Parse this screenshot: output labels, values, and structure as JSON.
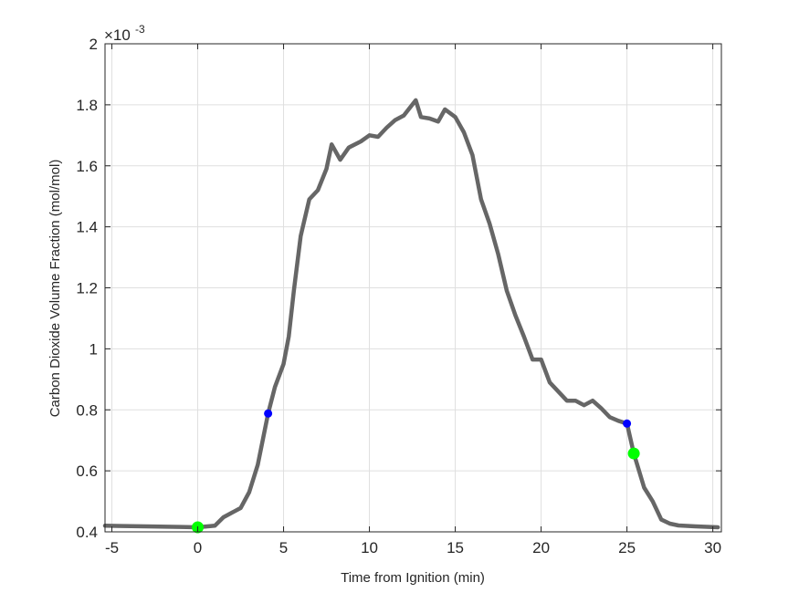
{
  "chart_data": {
    "type": "line",
    "title": "",
    "xlabel": "Time from Ignition (min)",
    "ylabel": "Carbon Dioxide Volume Fraction (mol/mol)",
    "y_exponent_label": "×10",
    "y_exponent": "-3",
    "xlim": [
      -5.4,
      30.5
    ],
    "ylim": [
      0.4,
      2.0
    ],
    "xticks": [
      -5,
      0,
      5,
      10,
      15,
      20,
      25,
      30
    ],
    "yticks": [
      0.4,
      0.6,
      0.8,
      1,
      1.2,
      1.4,
      1.6,
      1.8,
      2
    ],
    "grid": true,
    "line_color": "#666666",
    "series": [
      {
        "x": [
          -5.4,
          -3,
          -1,
          0,
          1,
          1.5,
          2.5,
          3,
          3.5,
          4.1,
          4.5,
          5,
          5.3,
          5.6,
          6,
          6.5,
          7,
          7.5,
          7.8,
          8.3,
          8.8,
          9.5,
          10,
          10.5,
          11,
          11.5,
          12,
          12.7,
          13,
          13.5,
          14,
          14.4,
          15,
          15.5,
          16,
          16.5,
          17,
          17.5,
          18,
          18.5,
          19,
          19.5,
          20,
          20.5,
          21,
          21.5,
          22,
          22.5,
          23,
          23.5,
          24,
          24.5,
          25,
          25.4,
          26,
          26.5,
          27,
          27.5,
          28,
          29,
          30.3
        ],
        "y": [
          0.42,
          0.418,
          0.416,
          0.415,
          0.42,
          0.448,
          0.478,
          0.53,
          0.62,
          0.788,
          0.875,
          0.95,
          1.04,
          1.19,
          1.37,
          1.49,
          1.52,
          1.59,
          1.67,
          1.62,
          1.66,
          1.68,
          1.7,
          1.695,
          1.725,
          1.75,
          1.765,
          1.815,
          1.76,
          1.755,
          1.745,
          1.785,
          1.76,
          1.71,
          1.635,
          1.49,
          1.41,
          1.31,
          1.19,
          1.11,
          1.04,
          0.965,
          0.965,
          0.89,
          0.86,
          0.83,
          0.83,
          0.815,
          0.83,
          0.805,
          0.776,
          0.764,
          0.755,
          0.657,
          0.545,
          0.5,
          0.44,
          0.427,
          0.421,
          0.418,
          0.415
        ]
      }
    ],
    "markers": [
      {
        "x": 0,
        "y": 0.415,
        "color": "#00ff00",
        "size": "large"
      },
      {
        "x": 25.4,
        "y": 0.657,
        "color": "#00ff00",
        "size": "large"
      },
      {
        "x": 4.1,
        "y": 0.788,
        "color": "#0000ff",
        "size": "small"
      },
      {
        "x": 25,
        "y": 0.755,
        "color": "#0000ff",
        "size": "small"
      }
    ]
  }
}
